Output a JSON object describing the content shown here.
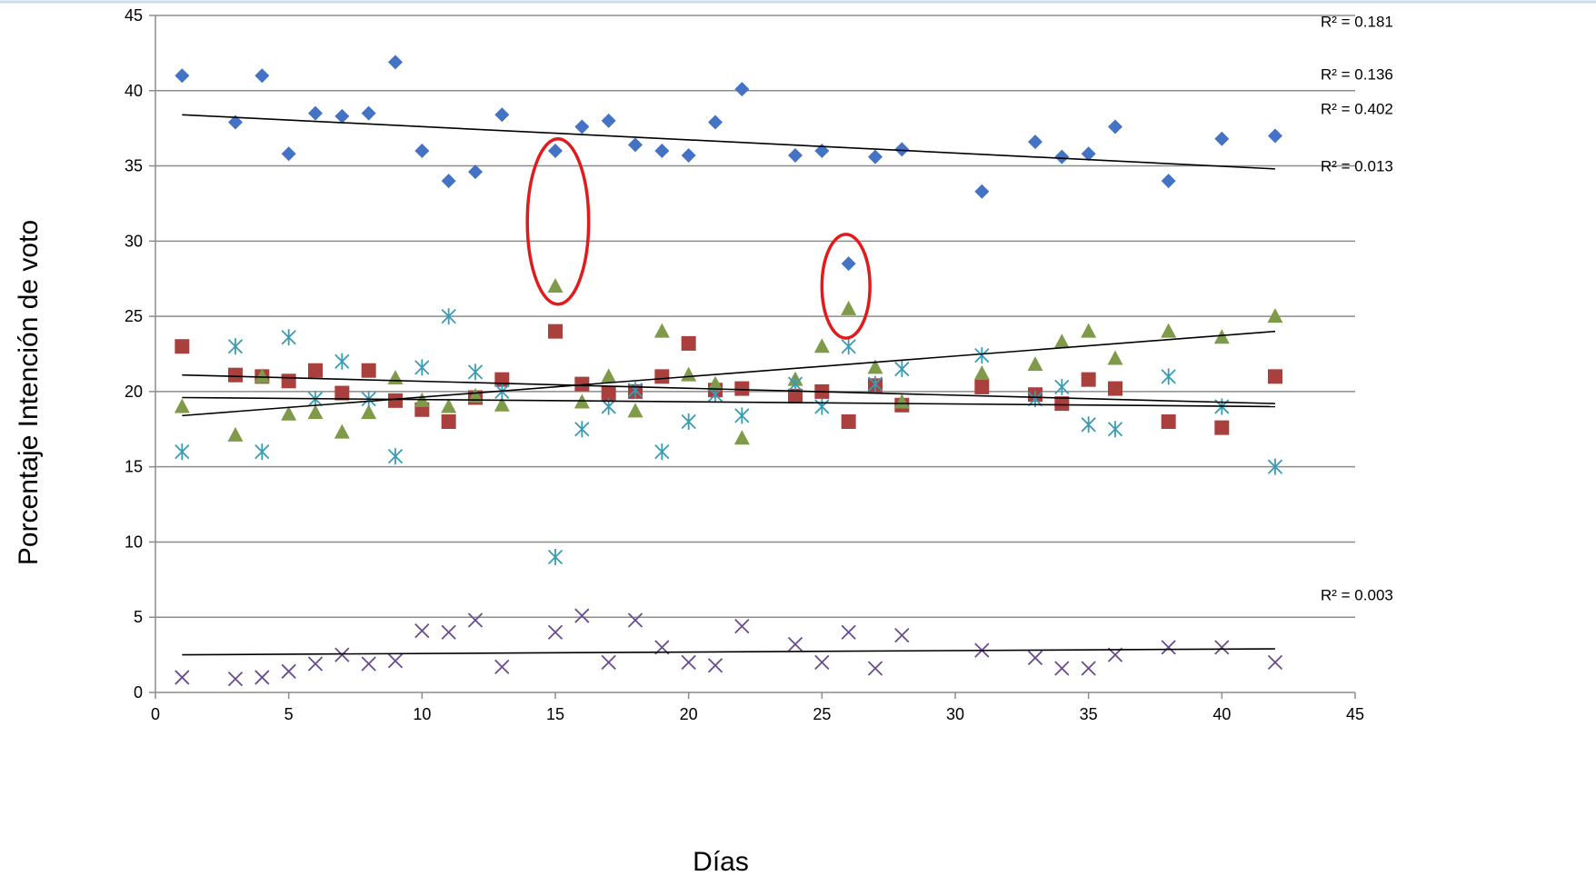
{
  "chart_data": {
    "type": "scatter",
    "xlabel": "Días",
    "ylabel": "Porcentaje Intención de voto",
    "xlim": [
      0,
      45
    ],
    "ylim": [
      0,
      45
    ],
    "xticks": [
      0,
      5,
      10,
      15,
      20,
      25,
      30,
      35,
      40,
      45
    ],
    "yticks": [
      0,
      5,
      10,
      15,
      20,
      25,
      30,
      35,
      40,
      45
    ],
    "grid": "horizontal",
    "series": [
      {
        "marker": "diamond",
        "color": "#4472c4",
        "x": [
          1,
          3,
          4,
          5,
          6,
          7,
          8,
          9,
          10,
          11,
          12,
          13,
          15,
          16,
          17,
          18,
          19,
          20,
          21,
          22,
          24,
          25,
          26,
          27,
          28,
          31,
          33,
          34,
          35,
          36,
          38,
          40,
          42
        ],
        "y": [
          41,
          37.9,
          41,
          35.8,
          38.5,
          38.3,
          38.5,
          41.9,
          36,
          34,
          34.6,
          38.4,
          36,
          37.6,
          38,
          36.4,
          36,
          35.7,
          37.9,
          40.1,
          35.7,
          36,
          28.5,
          35.6,
          36.1,
          33.3,
          36.6,
          35.6,
          35.8,
          37.6,
          34,
          36.8,
          37
        ],
        "trendline": [
          [
            1,
            38.4
          ],
          [
            42,
            34.8
          ]
        ],
        "r2": "R² = 0.181"
      },
      {
        "marker": "square",
        "color": "#a9403d",
        "x": [
          1,
          3,
          4,
          5,
          6,
          7,
          8,
          9,
          10,
          11,
          12,
          13,
          15,
          16,
          17,
          18,
          19,
          20,
          21,
          22,
          24,
          25,
          26,
          27,
          28,
          31,
          33,
          34,
          35,
          36,
          38,
          40,
          42
        ],
        "y": [
          23,
          21.1,
          21,
          20.7,
          21.4,
          19.9,
          21.4,
          19.4,
          18.8,
          18,
          19.6,
          20.8,
          24,
          20.5,
          19.9,
          20,
          21,
          23.2,
          20.1,
          20.2,
          19.7,
          20,
          18,
          20.4,
          19.1,
          20.3,
          19.8,
          19.2,
          20.8,
          20.2,
          18,
          17.6,
          21
        ],
        "trendline": [
          [
            1,
            21.1
          ],
          [
            42,
            19.2
          ]
        ],
        "r2": "R² = 0.136"
      },
      {
        "marker": "triangle",
        "color": "#7f9a48",
        "x": [
          1,
          3,
          4,
          5,
          6,
          7,
          8,
          9,
          10,
          11,
          12,
          13,
          15,
          16,
          17,
          18,
          19,
          20,
          21,
          22,
          24,
          25,
          26,
          27,
          28,
          31,
          33,
          34,
          35,
          36,
          38,
          40,
          42
        ],
        "y": [
          19,
          17.1,
          21,
          18.5,
          18.6,
          17.3,
          18.6,
          20.9,
          19.4,
          19,
          19.7,
          19.1,
          27,
          19.3,
          21,
          18.7,
          24,
          21.1,
          20.5,
          16.9,
          20.8,
          23,
          25.5,
          21.6,
          19.3,
          21.2,
          21.8,
          23.3,
          24,
          22.2,
          24,
          23.6,
          25
        ],
        "trendline": [
          [
            1,
            18.4
          ],
          [
            42,
            24
          ]
        ],
        "r2": "R² = 0.402"
      },
      {
        "marker": "star",
        "color": "#3a9bb4",
        "x": [
          1,
          3,
          4,
          5,
          6,
          7,
          8,
          9,
          10,
          11,
          12,
          13,
          15,
          16,
          17,
          18,
          19,
          20,
          21,
          22,
          24,
          25,
          26,
          27,
          28,
          31,
          33,
          34,
          35,
          36,
          38,
          40,
          42
        ],
        "y": [
          16,
          23,
          16,
          23.6,
          19.5,
          22,
          19.5,
          15.7,
          21.6,
          25,
          21.3,
          20,
          9,
          17.5,
          19,
          20.1,
          16,
          18,
          19.8,
          18.4,
          20.5,
          19,
          23,
          20.5,
          21.5,
          22.4,
          19.5,
          20.3,
          17.8,
          17.5,
          21,
          19,
          15
        ],
        "trendline": [
          [
            1,
            19.6
          ],
          [
            42,
            19
          ]
        ],
        "r2": "R² = 0.013"
      },
      {
        "marker": "x",
        "color": "#6a4c8e",
        "x": [
          1,
          3,
          4,
          5,
          6,
          7,
          8,
          9,
          10,
          11,
          12,
          13,
          15,
          16,
          17,
          18,
          19,
          20,
          21,
          22,
          24,
          25,
          26,
          27,
          28,
          31,
          33,
          34,
          35,
          36,
          38,
          40,
          42
        ],
        "y": [
          1,
          0.9,
          1,
          1.4,
          1.9,
          2.5,
          1.9,
          2.1,
          4.1,
          4,
          4.8,
          1.7,
          4,
          5.1,
          2,
          4.8,
          3,
          2,
          1.8,
          4.4,
          3.2,
          2,
          4,
          1.6,
          3.8,
          2.8,
          2.3,
          1.6,
          1.6,
          2.5,
          3,
          3,
          2
        ],
        "trendline": [
          [
            1,
            2.5
          ],
          [
            42,
            2.9
          ]
        ],
        "r2": "R² = 0.003"
      }
    ],
    "annotations": [
      {
        "type": "ellipse",
        "color": "#e31a1c",
        "cx": 15.1,
        "cy": 31.3,
        "rx": 1.15,
        "ry": 5.5
      },
      {
        "type": "ellipse",
        "color": "#e31a1c",
        "cx": 25.9,
        "cy": 27,
        "rx": 0.9,
        "ry": 3.45
      }
    ],
    "r2_label_y": [
      44.6,
      41.1,
      38.8,
      35
    ]
  }
}
